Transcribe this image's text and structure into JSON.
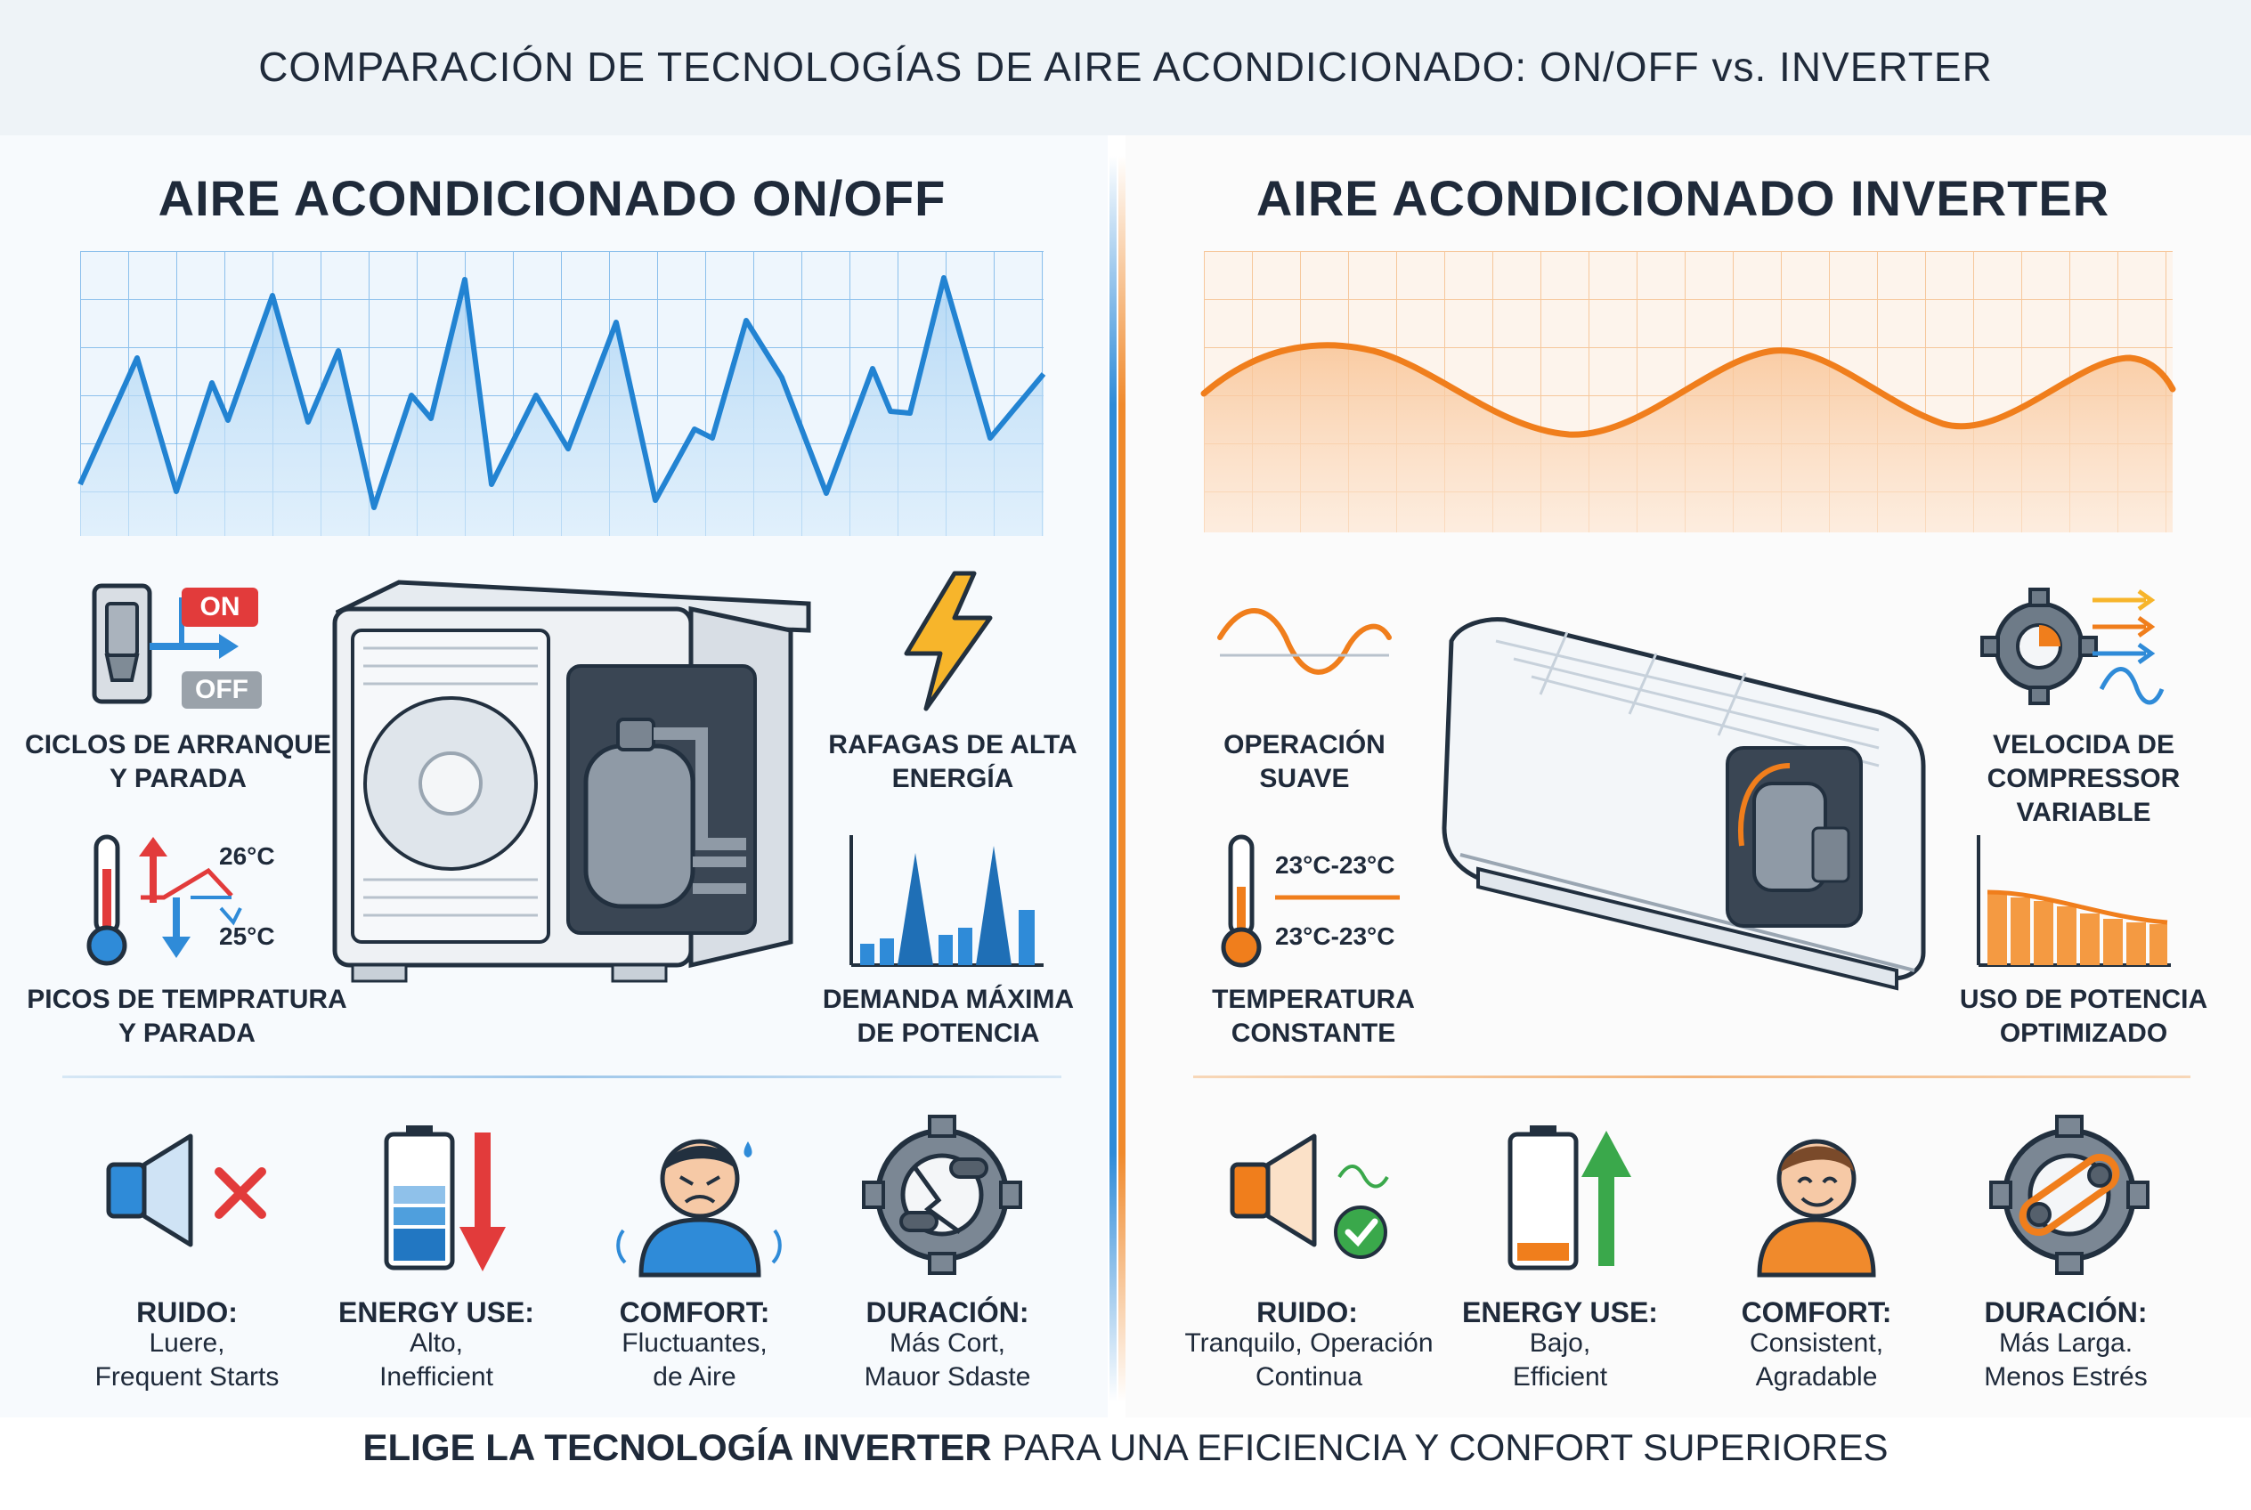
{
  "title": "COMPARACIÓN DE TECNOLOGÍAS DE AIRE ACONDICIONADO: ON/OFF vs. INVERTER",
  "colors": {
    "onoff_accent": "#2f8bd8",
    "inverter_accent": "#f08a2c",
    "alert_red": "#e23b3b",
    "ok_green": "#3aa84b"
  },
  "left": {
    "heading": "AIRE ACONDICIONADO ON/OFF",
    "switch": {
      "on": "ON",
      "off": "OFF"
    },
    "features": {
      "cycles": [
        "CICLOS DE ARRANQUE",
        "Y PARADA"
      ],
      "bursts": [
        "RAFAGAS DE ALTA",
        "ENERGÍA"
      ],
      "temp_peaks": [
        "PICOS DE TEMPRATURA",
        "Y PARADA"
      ],
      "max_demand": [
        "DEMANDA MÁXIMA",
        "DE POTENCIA"
      ]
    },
    "temps": {
      "high": "26°C",
      "low": "25°C"
    },
    "bottom": [
      {
        "title": "RUIDO:",
        "desc": [
          "Luere,",
          "Frequent Starts"
        ],
        "icon": "speaker-muted-icon"
      },
      {
        "title": "ENERGY USE:",
        "desc": [
          "Alto,",
          "Inefficient"
        ],
        "icon": "battery-down-icon"
      },
      {
        "title": "COMFORT:",
        "desc": [
          "Fluctuantes,",
          "de Aire"
        ],
        "icon": "uncomfortable-person-icon"
      },
      {
        "title": "DURACIÓN:",
        "desc": [
          "Más Cort,",
          "Mauor Sdaste"
        ],
        "icon": "broken-gear-icon"
      }
    ]
  },
  "right": {
    "heading": "AIRE ACONDICIONADO INVERTER",
    "features": {
      "smooth": [
        "OPERACIÓN",
        "SUAVE"
      ],
      "variable": [
        "VELOCIDA DE",
        "COMPRESSOR",
        "VARIABLE"
      ],
      "constant": [
        "TEMPERATURA",
        "CONSTANTE"
      ],
      "optimized": [
        "USO DE POTENCIA",
        "OPTIMIZADO"
      ]
    },
    "temps": {
      "high": "23°C-23°C",
      "low": "23°C-23°C"
    },
    "bottom": [
      {
        "title": "RUIDO:",
        "desc": [
          "Tranquilo, Operación",
          "Continua"
        ],
        "icon": "speaker-check-icon"
      },
      {
        "title": "ENERGY USE:",
        "desc": [
          "Bajo,",
          "Efficient"
        ],
        "icon": "battery-up-icon"
      },
      {
        "title": "COMFORT:",
        "desc": [
          "Consistent,",
          "Agradable"
        ],
        "icon": "happy-person-icon"
      },
      {
        "title": "DURACIÓN:",
        "desc": [
          "Más Larga.",
          "Menos Estrés"
        ],
        "icon": "gear-chain-icon"
      }
    ]
  },
  "footer": {
    "bold": "ELIGE LA TECNOLOGÍA INVERTER",
    "rest": " PARA UNA EFICIENCIA Y CONFORT SUPERIORES"
  }
}
